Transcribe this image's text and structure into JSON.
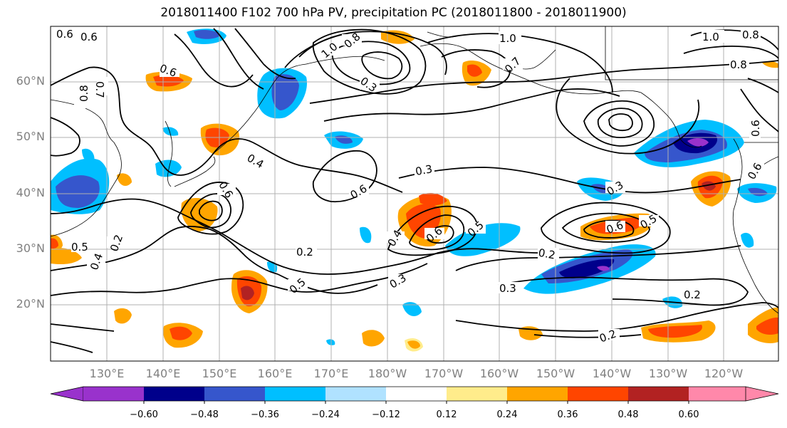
{
  "title": "2018011400 F102 700 hPa PV, precipitation PC (2018011800 - 2018011900)",
  "lat_labels": [
    "60°N",
    "50°N",
    "40°N",
    "30°N",
    "20°N"
  ],
  "lon_labels": [
    "130°E",
    "140°E",
    "150°E",
    "160°E",
    "170°E",
    "180°W",
    "170°W",
    "160°W",
    "150°W",
    "140°W",
    "130°W",
    "120°W"
  ],
  "colorbar": {
    "ticks": [
      "−0.60",
      "−0.48",
      "−0.36",
      "−0.24",
      "−0.12",
      "0.12",
      "0.24",
      "0.36",
      "0.48",
      "0.60"
    ],
    "colors": [
      "#9932cc",
      "#00008b",
      "#3656cc",
      "#00bfff",
      "#b0e2ff",
      "#ffffff",
      "#ffec8b",
      "#ffa500",
      "#ff4500",
      "#b22222",
      "#ff88aa"
    ]
  },
  "contour_labels": [
    "0.6",
    "0.6",
    "0.8",
    "0.7",
    "0.6",
    "1.0",
    "0.8",
    "0.3",
    "1.0",
    "0.7",
    "1.0",
    "0.8",
    "0.8",
    "0.6",
    "0.4",
    "0.6",
    "0.6",
    "0.3",
    "0.3",
    "0.5",
    "0.6",
    "0.4",
    "0.6",
    "0.5",
    "0.2",
    "0.2",
    "0.5",
    "0.3",
    "0.3",
    "0.2",
    "0.2",
    "0.5",
    "0.4",
    "0.2",
    "0.6"
  ]
}
